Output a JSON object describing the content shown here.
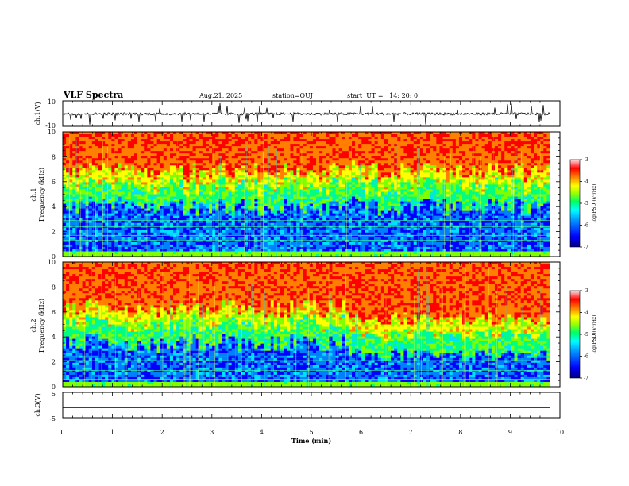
{
  "header": {
    "title": "VLF Spectra",
    "date": "Aug.21, 2025",
    "station": "station=OUJ",
    "start": "start  UT =   14: 20: 0"
  },
  "colors": {
    "colormap": [
      "#00008b",
      "#0000ff",
      "#0080ff",
      "#00e0ff",
      "#00ff80",
      "#80ff00",
      "#ffff00",
      "#ff8000",
      "#ff0000",
      "#ffffff"
    ],
    "waveform": "#000000"
  },
  "chart_data": [
    {
      "type": "line",
      "panel": "ch1-waveform",
      "ylabel": "ch.1(V)",
      "ylim": [
        -10,
        10
      ],
      "yticks": [
        "10",
        "-10"
      ],
      "xlim": [
        0,
        10
      ],
      "description_level": -0.2
    },
    {
      "type": "heatmap",
      "panel": "ch1-spectrogram",
      "ylabel": "ch.1\nFrequency (kHz)",
      "ylabel_top": "ch.1",
      "ylabel_main": "Frequency (kHz)",
      "ylim": [
        0,
        10
      ],
      "yticks": [
        "0",
        "2",
        "4",
        "6",
        "8",
        "10"
      ],
      "xlim": [
        0,
        10
      ],
      "data_end_min": 9.8,
      "colorbar": {
        "label": "log(PSD)(V²/Hz)",
        "range": [
          -7,
          -3
        ],
        "ticks": [
          "-3",
          "-4",
          "-5",
          "-6",
          "-7"
        ]
      },
      "low_high_boundary_khz": 5.0
    },
    {
      "type": "heatmap",
      "panel": "ch2-spectrogram",
      "ylabel_top": "ch.2",
      "ylabel_main": "Frequency (kHz)",
      "ylim": [
        0,
        10
      ],
      "yticks": [
        "0",
        "2",
        "4",
        "6",
        "8",
        "10"
      ],
      "xlim": [
        0,
        10
      ],
      "data_end_min": 9.8,
      "colorbar": {
        "label": "log(PSD)(V²/Hz)",
        "range": [
          -7,
          -3
        ],
        "ticks": [
          "-3",
          "-4",
          "-5",
          "-6",
          "-7"
        ]
      },
      "low_high_boundary_khz": 4.5
    },
    {
      "type": "line",
      "panel": "ch3-waveform",
      "ylabel": "ch.3(V)",
      "ylim": [
        -5,
        5
      ],
      "yticks": [
        "5",
        "-5"
      ],
      "xlim": [
        0,
        10
      ],
      "level": -1.0
    }
  ],
  "xaxis": {
    "label": "Time (min)",
    "ticks": [
      "0",
      "1",
      "2",
      "3",
      "4",
      "5",
      "6",
      "7",
      "8",
      "9",
      "10"
    ]
  }
}
